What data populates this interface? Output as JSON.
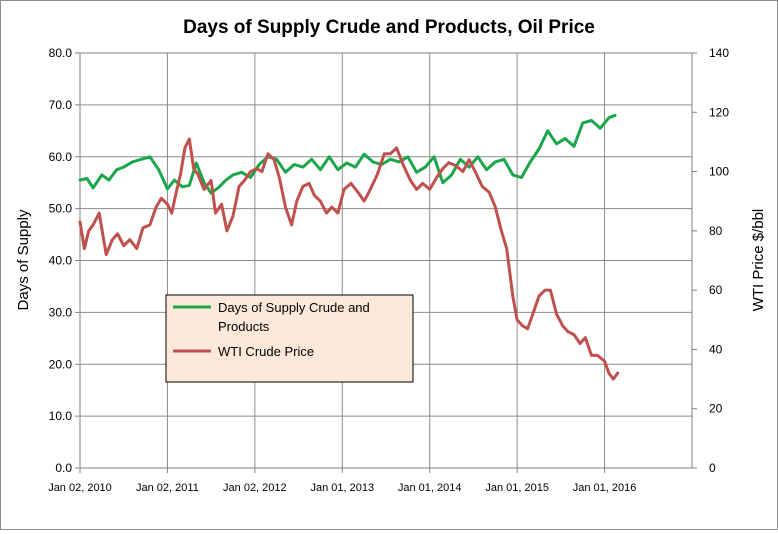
{
  "chart_data": {
    "type": "line",
    "title": "Days of Supply Crude and Products, Oil Price",
    "ylabel_left": "Days of Supply",
    "ylabel_right": "WTI Price $/bbl",
    "ylim_left": [
      0,
      80
    ],
    "ylim_right": [
      0,
      140
    ],
    "yticks_left": [
      "0.0",
      "10.0",
      "20.0",
      "30.0",
      "40.0",
      "50.0",
      "60.0",
      "70.0",
      "80.0"
    ],
    "yticks_right": [
      "0",
      "20",
      "40",
      "60",
      "80",
      "100",
      "120",
      "140"
    ],
    "xticks": [
      "Jan 02, 2010",
      "Jan 02, 2011",
      "Jan 02, 2012",
      "Jan 01, 2013",
      "Jan 01, 2014",
      "Jan 01, 2015",
      "Jan 01, 2016"
    ],
    "x_range": [
      2010.0,
      2017.0
    ],
    "grid": true,
    "legend_position": "center-left",
    "series": [
      {
        "name": "Days of Supply Crude and Products",
        "axis": "left",
        "color": "#1aa64a",
        "x": [
          2010.0,
          2010.08,
          2010.15,
          2010.25,
          2010.33,
          2010.42,
          2010.5,
          2010.6,
          2010.7,
          2010.8,
          2010.9,
          2011.0,
          2011.08,
          2011.17,
          2011.25,
          2011.33,
          2011.42,
          2011.5,
          2011.58,
          2011.67,
          2011.75,
          2011.85,
          2011.95,
          2012.05,
          2012.15,
          2012.25,
          2012.35,
          2012.45,
          2012.55,
          2012.65,
          2012.75,
          2012.85,
          2012.95,
          2013.05,
          2013.15,
          2013.25,
          2013.35,
          2013.45,
          2013.55,
          2013.65,
          2013.75,
          2013.85,
          2013.95,
          2014.05,
          2014.15,
          2014.25,
          2014.35,
          2014.45,
          2014.55,
          2014.65,
          2014.75,
          2014.85,
          2014.95,
          2015.05,
          2015.15,
          2015.25,
          2015.35,
          2015.45,
          2015.55,
          2015.65,
          2015.75,
          2015.85,
          2015.95,
          2016.05,
          2016.12
        ],
        "y": [
          55.5,
          55.8,
          54.0,
          56.5,
          55.5,
          57.5,
          58.0,
          59.0,
          59.5,
          60.0,
          57.5,
          53.8,
          55.5,
          54.2,
          54.5,
          58.8,
          55.0,
          53.0,
          54.0,
          55.5,
          56.5,
          57.0,
          56.0,
          58.5,
          60.0,
          59.5,
          57.0,
          58.5,
          58.0,
          59.5,
          57.5,
          60.0,
          57.5,
          58.8,
          58.0,
          60.5,
          59.0,
          58.5,
          59.5,
          59.0,
          60.0,
          57.0,
          58.0,
          60.0,
          55.0,
          56.5,
          59.5,
          58.0,
          60.0,
          57.5,
          59.0,
          59.5,
          56.5,
          56.0,
          59.0,
          61.5,
          65.0,
          62.5,
          63.5,
          62.0,
          66.5,
          67.0,
          65.5,
          67.5,
          68.0
        ]
      },
      {
        "name": "WTI Crude Price",
        "axis": "right",
        "color": "#c0504d",
        "x": [
          2010.0,
          2010.05,
          2010.1,
          2010.15,
          2010.22,
          2010.3,
          2010.37,
          2010.43,
          2010.5,
          2010.57,
          2010.65,
          2010.72,
          2010.8,
          2010.87,
          2010.93,
          2011.0,
          2011.05,
          2011.1,
          2011.15,
          2011.2,
          2011.25,
          2011.3,
          2011.35,
          2011.42,
          2011.5,
          2011.55,
          2011.62,
          2011.68,
          2011.75,
          2011.82,
          2011.88,
          2011.95,
          2012.02,
          2012.08,
          2012.15,
          2012.22,
          2012.28,
          2012.35,
          2012.42,
          2012.48,
          2012.55,
          2012.62,
          2012.68,
          2012.75,
          2012.82,
          2012.88,
          2012.95,
          2013.02,
          2013.1,
          2013.18,
          2013.25,
          2013.32,
          2013.4,
          2013.48,
          2013.55,
          2013.62,
          2013.7,
          2013.78,
          2013.85,
          2013.92,
          2014.0,
          2014.08,
          2014.15,
          2014.22,
          2014.3,
          2014.38,
          2014.45,
          2014.52,
          2014.6,
          2014.68,
          2014.75,
          2014.82,
          2014.88,
          2014.95,
          2015.0,
          2015.06,
          2015.12,
          2015.18,
          2015.25,
          2015.32,
          2015.38,
          2015.45,
          2015.52,
          2015.58,
          2015.65,
          2015.72,
          2015.78,
          2015.85,
          2015.92,
          2016.0,
          2016.05,
          2016.1,
          2016.15
        ],
        "y": [
          83,
          74,
          80,
          82,
          86,
          72,
          77,
          79,
          75,
          77,
          74,
          81,
          82,
          88,
          91,
          89,
          86,
          93,
          99,
          108,
          111,
          101,
          99,
          94,
          97,
          86,
          89,
          80,
          85,
          95,
          97,
          100,
          101,
          100,
          106,
          104,
          98,
          88,
          82,
          90,
          95,
          96,
          92,
          90,
          86,
          88,
          86,
          94,
          96,
          93,
          90,
          94,
          99,
          106,
          106,
          108,
          102,
          97,
          94,
          96,
          94,
          98,
          101,
          103,
          102,
          100,
          104,
          100,
          95,
          93,
          88,
          80,
          74,
          58,
          50,
          48,
          47,
          52,
          58,
          60,
          60,
          52,
          48,
          46,
          45,
          42,
          44,
          38,
          38,
          36,
          32,
          30,
          32
        ]
      }
    ]
  }
}
